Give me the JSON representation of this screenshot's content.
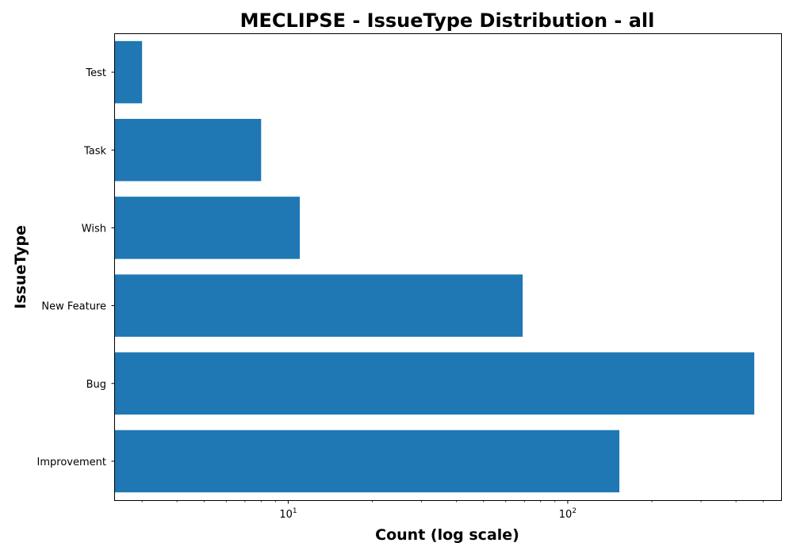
{
  "chart_data": {
    "type": "bar",
    "orientation": "horizontal",
    "title": "MECLIPSE - IssueType Distribution - all",
    "xlabel": "Count (log scale)",
    "ylabel": "IssueType",
    "x_scale": "log",
    "xlim": [
      2.4,
      580
    ],
    "x_major_ticks": [
      {
        "value": 10,
        "base": "10",
        "exp": "1"
      },
      {
        "value": 100,
        "base": "10",
        "exp": "2"
      }
    ],
    "x_minor_ticks": [
      3,
      4,
      5,
      6,
      7,
      8,
      9,
      20,
      30,
      40,
      50,
      60,
      70,
      80,
      90,
      200,
      300,
      400,
      500
    ],
    "categories": [
      "Improvement",
      "Bug",
      "New Feature",
      "Wish",
      "Task",
      "Test"
    ],
    "values": [
      153,
      465,
      69,
      11,
      8,
      3
    ],
    "bar_color": "#1f77b4",
    "grid": false,
    "legend": "none"
  }
}
